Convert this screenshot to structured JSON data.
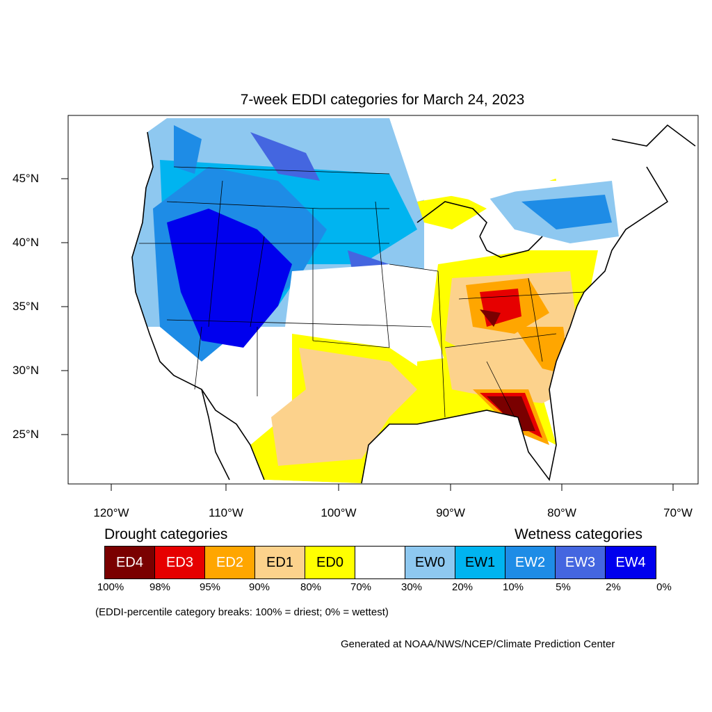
{
  "title": "7-week EDDI categories for March 24, 2023",
  "lat_labels": [
    "45°N",
    "40°N",
    "35°N",
    "30°N",
    "25°N"
  ],
  "lon_labels": [
    "120°W",
    "110°W",
    "100°W",
    "90°W",
    "80°W",
    "70°W"
  ],
  "legend": {
    "drought_heading": "Drought categories",
    "wetness_heading": "Wetness categories",
    "categories": [
      {
        "label": "ED4",
        "color": "#7a0000",
        "text_color": "#ffffff"
      },
      {
        "label": "ED3",
        "color": "#e60000",
        "text_color": "#ffffff"
      },
      {
        "label": "ED2",
        "color": "#ffa600",
        "text_color": "#ffffff"
      },
      {
        "label": "ED1",
        "color": "#fcd28c",
        "text_color": "#000000"
      },
      {
        "label": "ED0",
        "color": "#ffff00",
        "text_color": "#000000"
      },
      {
        "label": "",
        "color": "#ffffff",
        "text_color": "#000000"
      },
      {
        "label": "EW0",
        "color": "#8ec8f0",
        "text_color": "#000000"
      },
      {
        "label": "EW1",
        "color": "#00b4f0",
        "text_color": "#000000"
      },
      {
        "label": "EW2",
        "color": "#1e8ce6",
        "text_color": "#ffffff"
      },
      {
        "label": "EW3",
        "color": "#4466e0",
        "text_color": "#ffffff"
      },
      {
        "label": "EW4",
        "color": "#0000ee",
        "text_color": "#ffffff"
      }
    ],
    "breaks": [
      "100%",
      "98%",
      "95%",
      "90%",
      "80%",
      "70%",
      "30%",
      "20%",
      "10%",
      "5%",
      "2%",
      "0%"
    ]
  },
  "note": "(EDDI-percentile category breaks: 100% = driest; 0% = wettest)",
  "credit": "Generated at NOAA/NWS/NCEP/Climate Prediction Center"
}
